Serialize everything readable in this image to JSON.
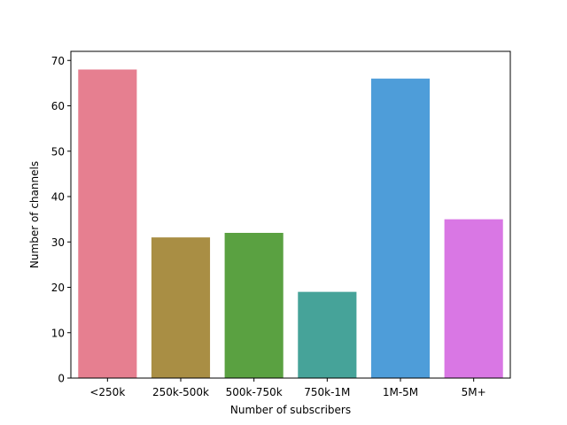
{
  "chart_data": {
    "type": "bar",
    "title": "",
    "xlabel": "Number of subscribers",
    "ylabel": "Number of channels",
    "categories": [
      "<250k",
      "250k-500k",
      "500k-750k",
      "750k-1M",
      "1M-5M",
      "5M+"
    ],
    "values": [
      68,
      31,
      32,
      19,
      66,
      35
    ],
    "colors": [
      "#e67f90",
      "#a98e44",
      "#5aa141",
      "#46a399",
      "#4e9dd9",
      "#d977e4"
    ],
    "ylim": [
      0,
      72
    ],
    "yticks": [
      0,
      10,
      20,
      30,
      40,
      50,
      60,
      70
    ],
    "grid": false,
    "legend": "none"
  }
}
